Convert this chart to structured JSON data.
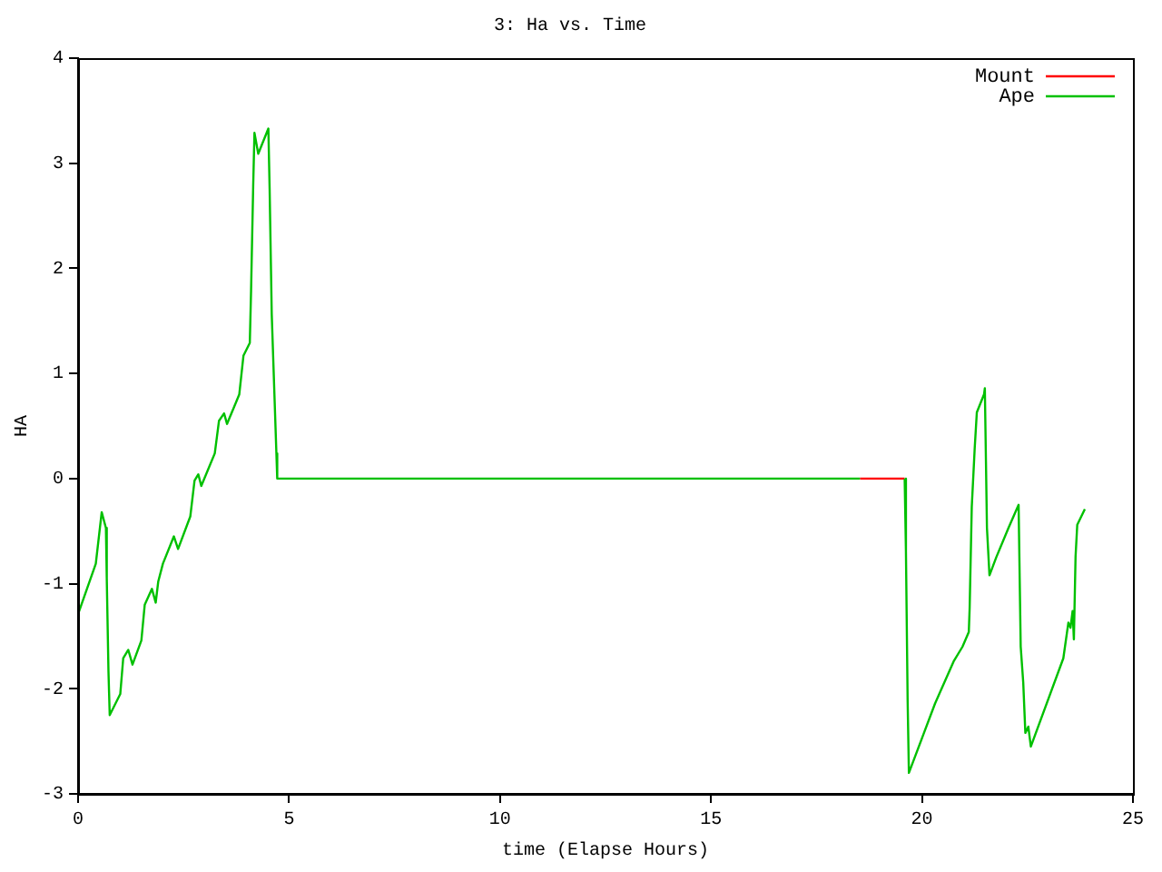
{
  "chart_data": {
    "type": "line",
    "title": "3: Ha vs. Time",
    "xlabel": "time (Elapse Hours)",
    "ylabel": "HA",
    "xlim": [
      0,
      25
    ],
    "xticks": [
      0,
      5,
      10,
      15,
      20,
      25
    ],
    "ylim": [
      -3,
      4
    ],
    "yticks": [
      -3,
      -2,
      -1,
      0,
      1,
      2,
      3,
      4
    ],
    "grid": false,
    "legend": "top right",
    "marker": "none",
    "line_style": "solid",
    "series": [
      {
        "name": "Mount",
        "color": "#ff0000",
        "x": [
          18.53,
          19.59
        ],
        "values": [
          0,
          0
        ]
      },
      {
        "name": "Ape",
        "color": "#00c000",
        "x": [
          0,
          0.42,
          0.56,
          0.66,
          0.68,
          0.72,
          0.75,
          1.0,
          1.07,
          1.19,
          1.29,
          1.5,
          1.58,
          1.75,
          1.84,
          1.9,
          2.01,
          2.27,
          2.37,
          2.66,
          2.76,
          2.85,
          2.92,
          3.24,
          3.34,
          3.46,
          3.53,
          3.82,
          3.92,
          4.07,
          4.1,
          4.15,
          4.18,
          4.27,
          4.51,
          4.54,
          4.59,
          4.66,
          4.7,
          4.72,
          18.53,
          19.0,
          19.59,
          19.62,
          19.66,
          19.69,
          20.31,
          20.75,
          20.96,
          21.11,
          21.13,
          21.18,
          21.25,
          21.3,
          21.47,
          21.49,
          21.54,
          21.6,
          21.76,
          22.05,
          22.29,
          22.34,
          22.4,
          22.45,
          22.52,
          22.58,
          23.35,
          23.47,
          23.52,
          23.57,
          23.6,
          23.64,
          23.68,
          23.86
        ],
        "values": [
          -1.29,
          -0.81,
          -0.32,
          -0.47,
          -0.95,
          -1.83,
          -2.25,
          -2.05,
          -1.71,
          -1.63,
          -1.77,
          -1.54,
          -1.2,
          -1.05,
          -1.18,
          -0.98,
          -0.81,
          -0.55,
          -0.67,
          -0.36,
          -0.02,
          0.04,
          -0.07,
          0.24,
          0.55,
          0.62,
          0.52,
          0.8,
          1.17,
          1.29,
          1.79,
          2.78,
          3.29,
          3.09,
          3.33,
          2.75,
          1.56,
          0.72,
          0.24,
          0,
          0,
          null,
          0,
          -0.69,
          -2.11,
          -2.8,
          -2.14,
          -1.74,
          -1.6,
          -1.46,
          -1.23,
          -0.27,
          0.29,
          0.63,
          0.8,
          0.86,
          -0.47,
          -0.92,
          -0.75,
          -0.47,
          -0.25,
          -1.6,
          -1.94,
          -2.42,
          -2.36,
          -2.55,
          -1.71,
          -1.37,
          -1.42,
          -1.26,
          -1.53,
          -0.74,
          -0.44,
          -0.29
        ]
      }
    ]
  }
}
